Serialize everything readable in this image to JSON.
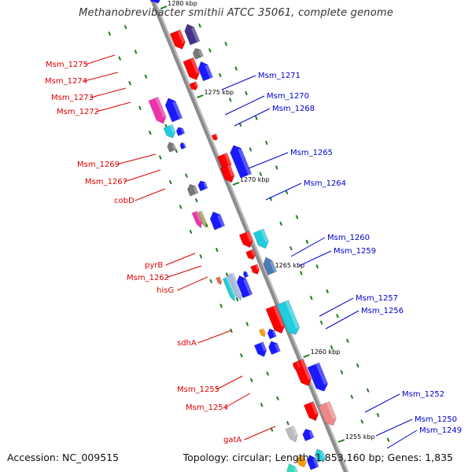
{
  "title": "Methanobrevibacter smithii ATCC 35061, complete genome",
  "footer": {
    "accession": "Accession: NC_009515",
    "summary": "Topology: circular; Length: 1,853,160 bp; Genes: 1,835"
  },
  "colors": {
    "axis": "#8c8c8c",
    "tick": "#1f7a1f",
    "plus_label": "#dd0000",
    "minus_label": "#0000cc",
    "red": "#ff0000",
    "blue": "#1a1aff",
    "cyan": "#20ccdd",
    "magenta": "#ee33aa",
    "gray": "#777777",
    "pink": "#ee8888",
    "orange": "#ff9900",
    "olive": "#aaaa66"
  },
  "axis_tick_labels": [
    "1280 kbp",
    "1275 kbp",
    "1270 kbp",
    "1265 kbp",
    "1260 kbp",
    "1255 kbp"
  ],
  "genes_plus_strand": [
    "Msm_1275",
    "Msm_1274",
    "Msm_1273",
    "Msm_1272",
    "Msm_1269",
    "Msm_1267",
    "cobD",
    "pyrB",
    "Msm_1262",
    "hisG",
    "sdhA",
    "Msm_1255",
    "Msm_1254",
    "gatA"
  ],
  "genes_minus_strand": [
    "Msm_1271",
    "Msm_1270",
    "Msm_1268",
    "Msm_1265",
    "Msm_1264",
    "Msm_1260",
    "Msm_1259",
    "Msm_1257",
    "Msm_1256",
    "Msm_1252",
    "Msm_1250",
    "Msm_1249"
  ]
}
